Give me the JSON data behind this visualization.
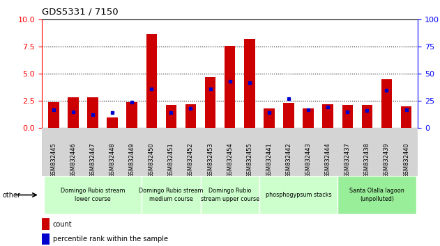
{
  "title": "GDS5331 / 7150",
  "samples": [
    "GSM832445",
    "GSM832446",
    "GSM832447",
    "GSM832448",
    "GSM832449",
    "GSM832450",
    "GSM832451",
    "GSM832452",
    "GSM832453",
    "GSM832454",
    "GSM832455",
    "GSM832441",
    "GSM832442",
    "GSM832443",
    "GSM832444",
    "GSM832437",
    "GSM832438",
    "GSM832439",
    "GSM832440"
  ],
  "count_values": [
    2.4,
    2.8,
    2.8,
    1.0,
    2.4,
    8.7,
    2.1,
    2.2,
    4.7,
    7.6,
    8.2,
    1.8,
    2.3,
    1.8,
    2.2,
    2.1,
    2.1,
    4.5,
    2.0
  ],
  "percentile_values": [
    17,
    15,
    12,
    14,
    24,
    36,
    14,
    18,
    36,
    43,
    42,
    14,
    27,
    17,
    19,
    15,
    16,
    35,
    17
  ],
  "group_info": [
    {
      "label": "Domingo Rubio stream\nlower course",
      "start": 0,
      "end": 4,
      "color": "#ccffcc"
    },
    {
      "label": "Domingo Rubio stream\nmedium course",
      "start": 5,
      "end": 7,
      "color": "#ccffcc"
    },
    {
      "label": "Domingo Rubio\nstream upper course",
      "start": 8,
      "end": 10,
      "color": "#ccffcc"
    },
    {
      "label": "phosphogypsum stacks",
      "start": 11,
      "end": 14,
      "color": "#ccffcc"
    },
    {
      "label": "Santa Olalla lagoon\n(unpolluted)",
      "start": 15,
      "end": 18,
      "color": "#99ee99"
    }
  ],
  "bar_color": "#cc0000",
  "percentile_color": "#0000cc",
  "ylim_left": [
    0,
    10
  ],
  "ylim_right": [
    0,
    100
  ],
  "yticks_left": [
    0,
    2.5,
    5.0,
    7.5,
    10
  ],
  "yticks_right": [
    0,
    25,
    50,
    75,
    100
  ],
  "legend_count_color": "#cc0000",
  "legend_pct_color": "#0000cc",
  "xtick_bg_color": "#d4d4d4",
  "plot_bg_color": "#ffffff"
}
